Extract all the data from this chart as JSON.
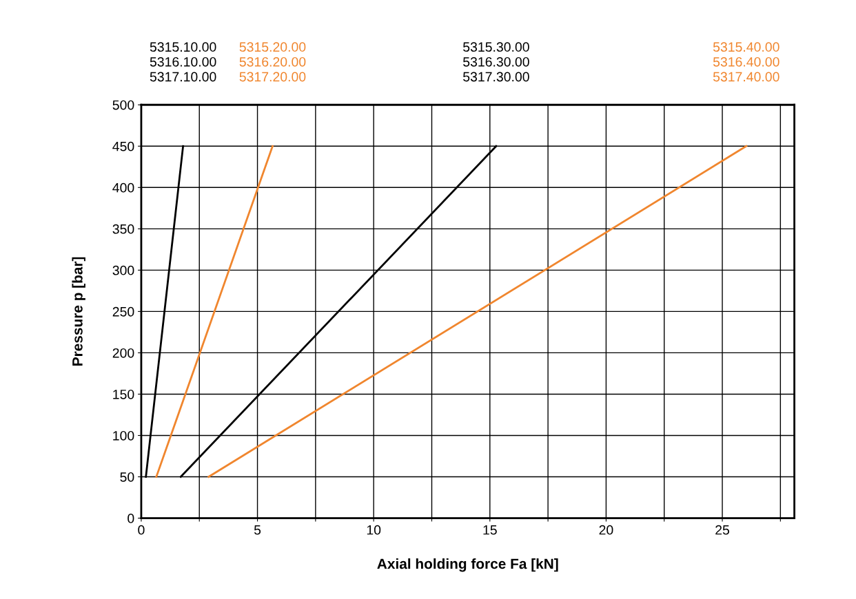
{
  "chart_data": {
    "type": "line",
    "xlabel": "Axial holding force Fa [kN]",
    "ylabel": "Pressure p [bar]",
    "series": [
      {
        "color": "#000000",
        "x": [
          0.2,
          1.8
        ],
        "values": [
          50,
          450
        ]
      },
      {
        "color": "#f0862e",
        "x": [
          0.65,
          5.65
        ],
        "values": [
          50,
          450
        ]
      },
      {
        "color": "#000000",
        "x": [
          1.7,
          15.27
        ],
        "values": [
          50,
          450
        ]
      },
      {
        "color": "#f0862e",
        "x": [
          2.9,
          26.03
        ],
        "values": [
          50,
          450
        ]
      }
    ],
    "xlim": [
      0,
      28.1
    ],
    "xticks": [
      0,
      {
        "value": 2.5,
        "label": null
      },
      5,
      {
        "value": 7.5,
        "label": null
      },
      10,
      {
        "value": 12.5,
        "label": null
      },
      15,
      {
        "value": 17.5,
        "label": null
      },
      20,
      {
        "value": 22.5,
        "label": null
      },
      25,
      {
        "value": 27.5,
        "label": null
      }
    ],
    "ylim": [
      0,
      500
    ],
    "yticks": [
      0,
      50,
      100,
      150,
      200,
      250,
      300,
      350,
      400,
      450,
      500
    ],
    "annotations": [
      "5315.10.00\n5316.10.00\n5317.10.00",
      "5315.20.00\n5316.20.00\n5317.20.00",
      "5315.30.00\n5316.30.00\n5317.30.00",
      "5315.40.00\n5316.40.00\n5317.40.00"
    ],
    "grid": true,
    "marker": "none",
    "line_style": "solid"
  }
}
